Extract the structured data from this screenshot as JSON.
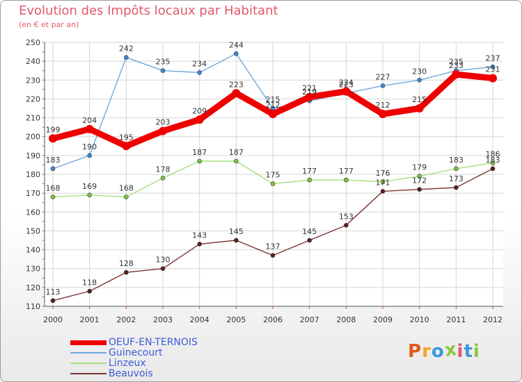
{
  "title": "Evolution des Impôts locaux par Habitant",
  "subtitle": "(en € et par an)",
  "logo": {
    "text": "Proxiti",
    "colors": [
      "#e05a1a",
      "#f2a62a",
      "#3a9ad9",
      "#8cc63f",
      "#e0596b",
      "#3a9ad9",
      "#8cc63f"
    ]
  },
  "chart_data": {
    "type": "line",
    "title": "Evolution des Impôts locaux par Habitant",
    "subtitle": "(en € et par an)",
    "xlabel": "",
    "ylabel": "",
    "ylim": [
      110,
      250
    ],
    "yticks": [
      110,
      120,
      130,
      140,
      150,
      160,
      170,
      180,
      190,
      200,
      210,
      220,
      230,
      240,
      250
    ],
    "x": [
      "2000",
      "2001",
      "2002",
      "2003",
      "2004",
      "2005",
      "2006",
      "2007",
      "2008",
      "2009",
      "2010",
      "2011",
      "2012"
    ],
    "grid": true,
    "legend_position": "bottom-left",
    "series": [
      {
        "name": "Guinecourt",
        "color": "#6fa8dc",
        "marker_color": "#3a8ad9",
        "values": [
          183,
          190,
          242,
          235,
          234,
          244,
          215,
          219,
          223,
          227,
          230,
          235,
          237
        ]
      },
      {
        "name": "Linzeux",
        "color": "#a6e07a",
        "marker_color": "#7cc63f",
        "values": [
          168,
          169,
          168,
          178,
          187,
          187,
          175,
          177,
          177,
          176,
          179,
          183,
          186
        ]
      },
      {
        "name": "Beauvois",
        "color": "#7a3434",
        "marker_color": "#5a1e1e",
        "values": [
          113,
          118,
          128,
          130,
          143,
          145,
          137,
          145,
          153,
          171,
          172,
          173,
          183
        ]
      },
      {
        "name": "OEUF-EN-TERNOIS",
        "color": "#ee0000",
        "marker_color": "#ee0000",
        "values": [
          199,
          204,
          195,
          203,
          209,
          223,
          212,
          221,
          224,
          212,
          215,
          233,
          231
        ]
      }
    ]
  }
}
